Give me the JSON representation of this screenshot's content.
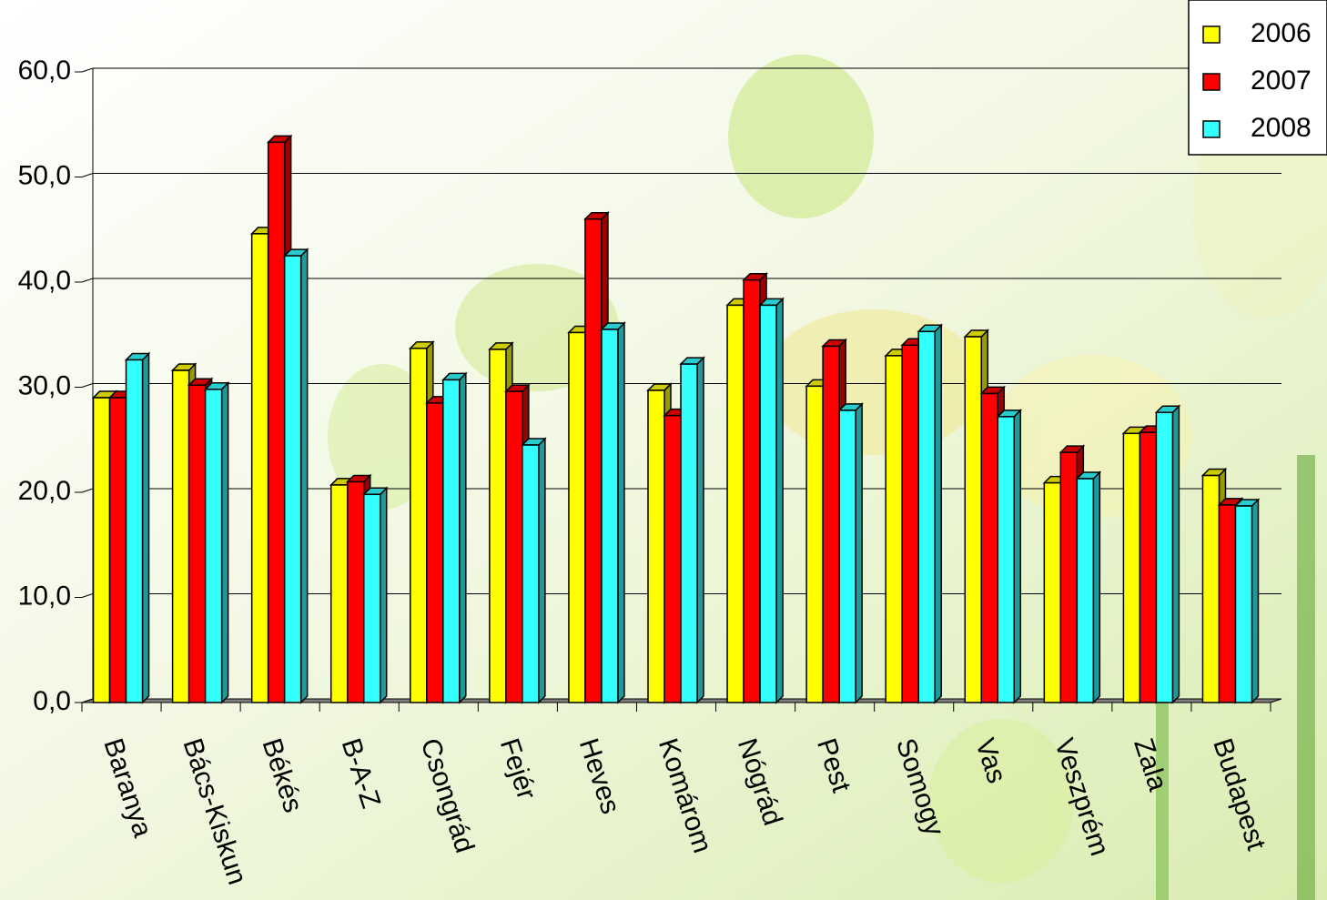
{
  "chart_data": {
    "type": "bar3d",
    "categories": [
      "Baranya",
      "Bács-Kiskun",
      "Békés",
      "B-A-Z",
      "Csongrád",
      "Fejér",
      "Heves",
      "Komárom",
      "Nógrád",
      "Pest",
      "Somogy",
      "Vas",
      "Veszprém",
      "Zala",
      "Budapest"
    ],
    "series": [
      {
        "name": "2006",
        "color": "#ffff00",
        "values": [
          29.0,
          31.6,
          44.6,
          20.7,
          33.7,
          33.6,
          35.2,
          29.7,
          37.8,
          30.1,
          33.0,
          34.8,
          20.9,
          25.6,
          21.6
        ]
      },
      {
        "name": "2007",
        "color": "#ff0000",
        "values": [
          29.0,
          30.2,
          53.3,
          21.0,
          28.5,
          29.6,
          46.0,
          27.3,
          40.2,
          33.9,
          34.0,
          29.4,
          23.8,
          25.7,
          18.8
        ]
      },
      {
        "name": "2008",
        "color": "#33ffff",
        "values": [
          32.6,
          29.8,
          42.5,
          19.8,
          30.7,
          24.5,
          35.5,
          32.2,
          37.8,
          27.8,
          35.3,
          27.2,
          21.3,
          27.6,
          18.7
        ]
      }
    ],
    "ylim": [
      0,
      60
    ],
    "yticks": [
      {
        "value": 0,
        "label": "0,0"
      },
      {
        "value": 10,
        "label": "10,0"
      },
      {
        "value": 20,
        "label": "20,0"
      },
      {
        "value": 30,
        "label": "30,0"
      },
      {
        "value": 40,
        "label": "40,0"
      },
      {
        "value": 50,
        "label": "50,0"
      },
      {
        "value": 60,
        "label": "60,0"
      }
    ],
    "grid": true,
    "legend": "top-right"
  }
}
